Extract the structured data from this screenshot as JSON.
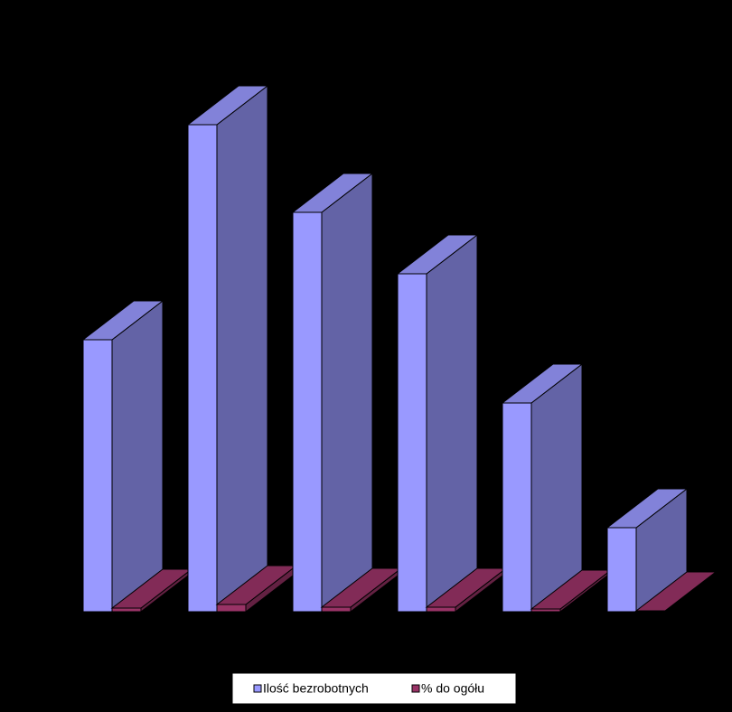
{
  "chart_data": {
    "type": "bar3d",
    "categories": [
      null,
      null,
      null,
      null,
      null,
      null
    ],
    "series": [
      {
        "name": "Ilość bezrobotnych",
        "color": "#9999ff",
        "values": [
          301,
          539,
          442,
          374,
          231,
          93
        ]
      },
      {
        "name": "% do ogółu",
        "color": "#993366",
        "values": [
          4,
          8,
          5,
          5,
          3,
          1
        ]
      }
    ],
    "ylim": [
      0,
      600
    ]
  }
}
